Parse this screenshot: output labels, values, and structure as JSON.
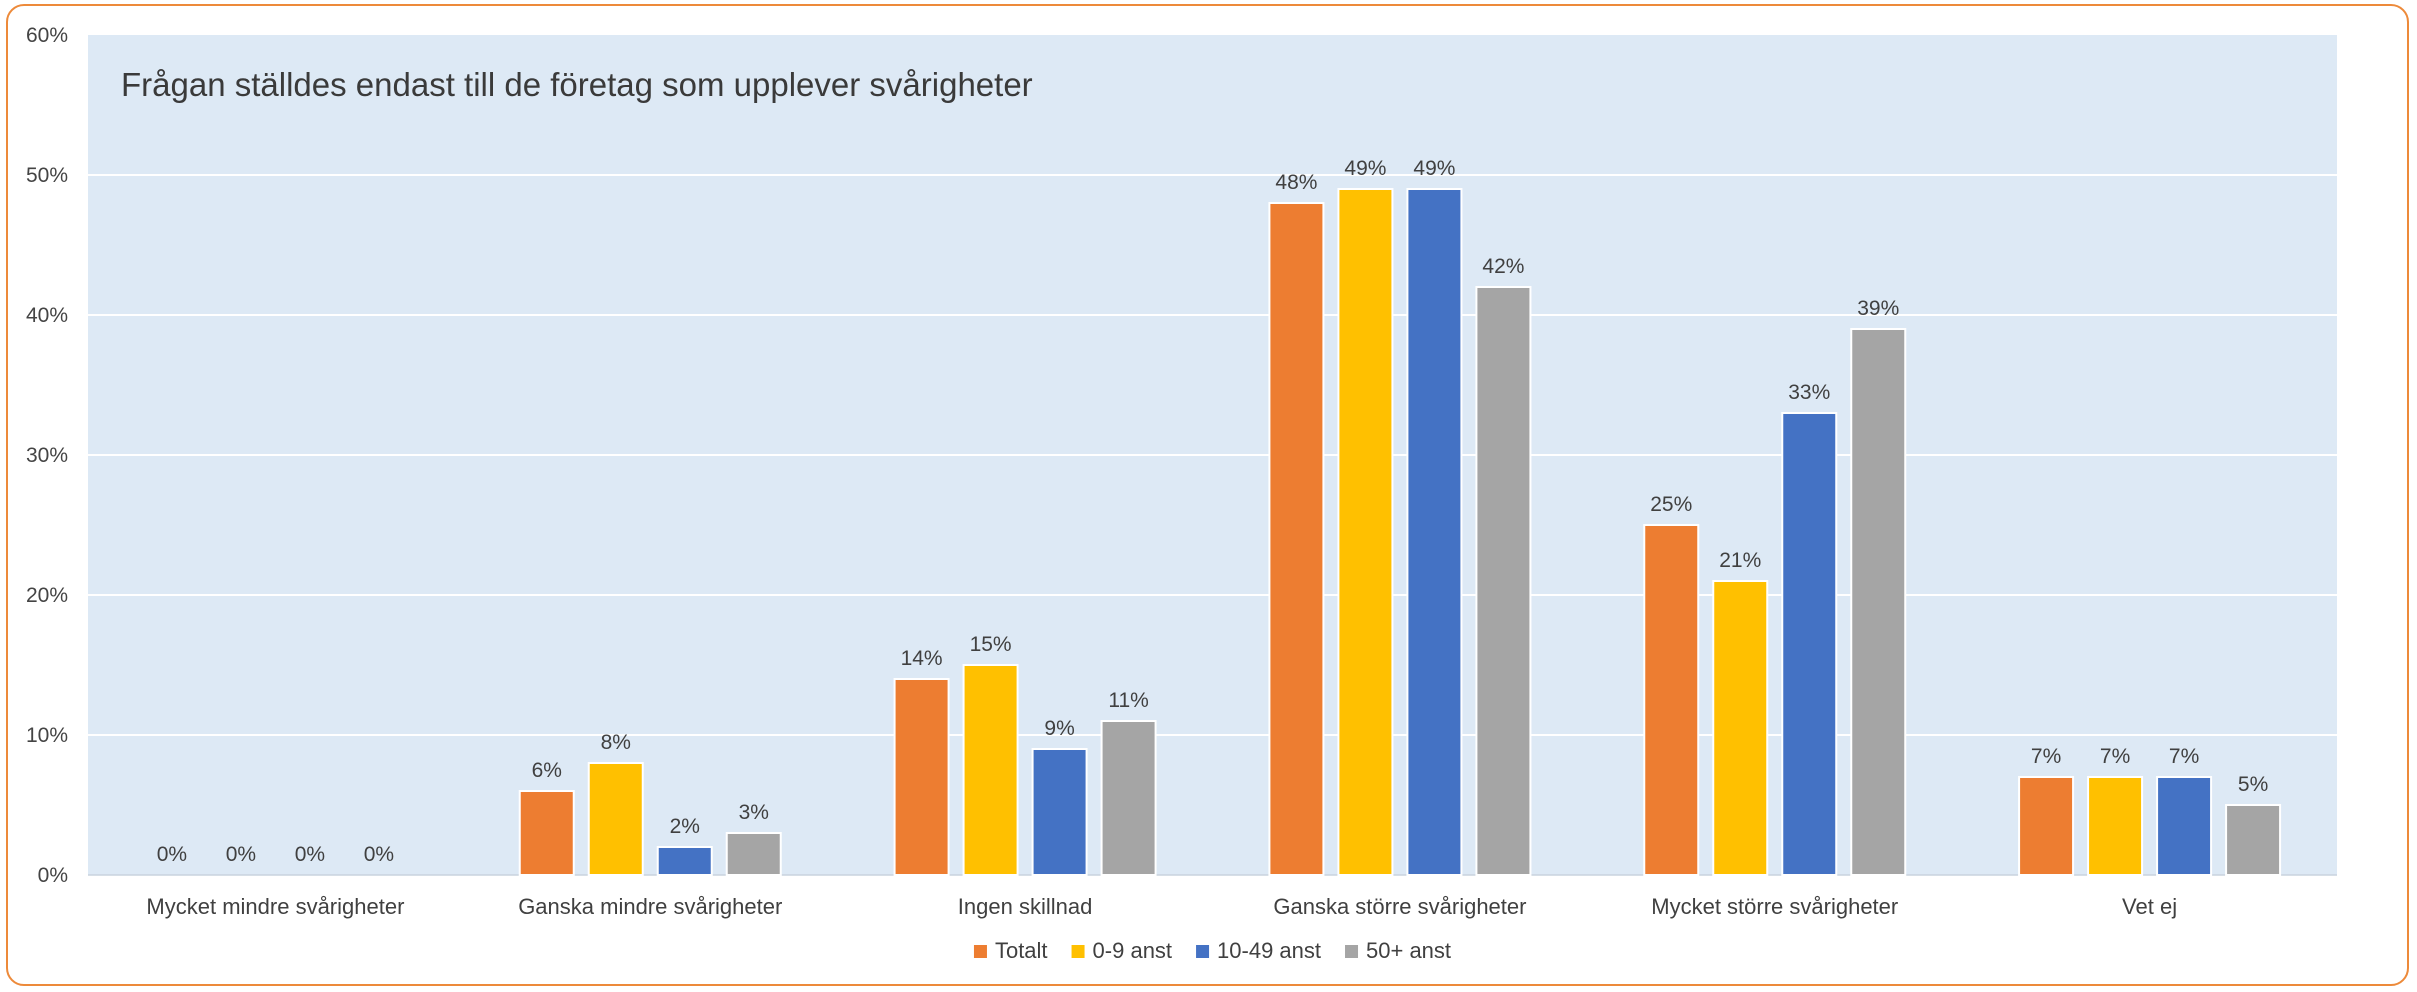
{
  "note": "Frågan ställdes endast till de företag som upplever svårigheter",
  "colors": {
    "plot_background": "#DDE9F5",
    "gridline": "#FFFFFF",
    "border": "#ED8A3A"
  },
  "chart_data": {
    "type": "bar",
    "title": "",
    "xlabel": "",
    "ylabel": "",
    "ylim": [
      0,
      60
    ],
    "y_ticks": [
      0,
      10,
      20,
      30,
      40,
      50,
      60
    ],
    "y_tick_labels": [
      "0%",
      "10%",
      "20%",
      "30%",
      "40%",
      "50%",
      "60%"
    ],
    "grid": true,
    "legend_position": "bottom",
    "categories": [
      "Mycket mindre svårigheter",
      "Ganska mindre svårigheter",
      "Ingen skillnad",
      "Ganska större svårigheter",
      "Mycket större svårigheter",
      "Vet ej"
    ],
    "series": [
      {
        "name": "Totalt",
        "color": "#ED7D31",
        "values": [
          0,
          6,
          14,
          48,
          25,
          7
        ],
        "labels": [
          "0%",
          "6%",
          "14%",
          "48%",
          "25%",
          "7%"
        ]
      },
      {
        "name": "0-9 anst",
        "color": "#FFC000",
        "values": [
          0,
          8,
          15,
          49,
          21,
          7
        ],
        "labels": [
          "0%",
          "8%",
          "15%",
          "49%",
          "21%",
          "7%"
        ]
      },
      {
        "name": "10-49 anst",
        "color": "#4472C4",
        "values": [
          0,
          2,
          9,
          49,
          33,
          7
        ],
        "labels": [
          "0%",
          "2%",
          "9%",
          "49%",
          "33%",
          "7%"
        ]
      },
      {
        "name": "50+ anst",
        "color": "#A5A5A5",
        "values": [
          0,
          3,
          11,
          42,
          39,
          5
        ],
        "labels": [
          "0%",
          "3%",
          "11%",
          "42%",
          "39%",
          "5%"
        ]
      }
    ]
  }
}
